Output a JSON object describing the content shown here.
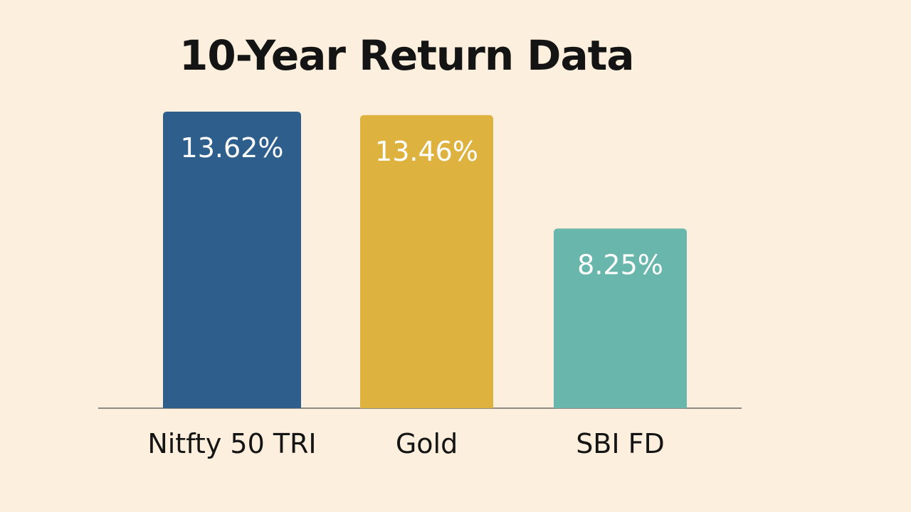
{
  "chart_data": {
    "type": "bar",
    "title": "10-Year Return Data",
    "xlabel": "",
    "ylabel": "",
    "categories": [
      "Nitfty 50 TRI",
      "Gold",
      "SBI FD"
    ],
    "values": [
      13.62,
      13.46,
      8.25
    ],
    "value_labels": [
      "13.62%",
      "13.46%",
      "8.25%"
    ],
    "colors": [
      "#2e5f8c",
      "#ddb23f",
      "#69b6ad"
    ],
    "grid": false,
    "legend": "none"
  }
}
